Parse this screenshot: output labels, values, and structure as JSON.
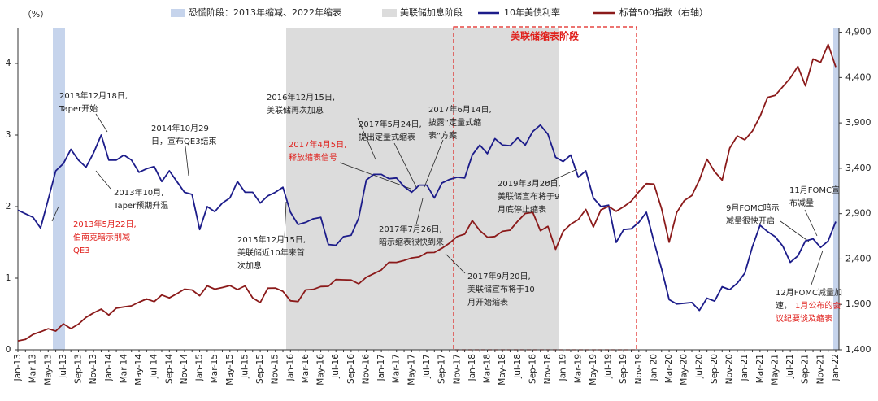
{
  "chart_data": {
    "type": "line",
    "y_label": "（%）",
    "box_label": "美联储缩表阶段",
    "regions": [
      {
        "name": "恐慌阶段：2013年缩减、2022年缩表",
        "color": "#c6d4ec"
      },
      {
        "name": "美联储加息阶段",
        "color": "#dcdcdc"
      }
    ],
    "categories": [
      "Jan-13",
      null,
      "Mar-13",
      null,
      "May-13",
      null,
      "Jul-13",
      null,
      "Sep-13",
      null,
      "Nov-13",
      null,
      "Jan-14",
      null,
      "Mar-14",
      null,
      "May-14",
      null,
      "Jul-14",
      null,
      "Sep-14",
      null,
      "Nov-14",
      null,
      "Jan-15",
      null,
      "Mar-15",
      null,
      "May-15",
      null,
      "Jul-15",
      null,
      "Sep-15",
      null,
      "Nov-15",
      null,
      "Jan-16",
      null,
      "Mar-16",
      null,
      "May-16",
      null,
      "Jul-16",
      null,
      "Sep-16",
      null,
      "Nov-16",
      null,
      "Jan-17",
      null,
      "Mar-17",
      null,
      "May-17",
      null,
      "Jul-17",
      null,
      "Sep-17",
      null,
      "Nov-17",
      null,
      "Jan-18",
      null,
      "Mar-18",
      null,
      "May-18",
      null,
      "Jul-18",
      null,
      "Sep-18",
      null,
      "Nov-18",
      null,
      "Jan-19",
      null,
      "Mar-19",
      null,
      "May-19",
      null,
      "Jul-19",
      null,
      "Sep-19",
      null,
      "Nov-19",
      null,
      "Jan-20",
      null,
      "Mar-20",
      null,
      "May-20",
      null,
      "Jul-20",
      null,
      "Sep-20",
      null,
      "Nov-20",
      null,
      "Jan-21",
      null,
      "Mar-21",
      null,
      "May-21",
      null,
      "Jul-21",
      null,
      "Sep-21",
      null,
      "Nov-21",
      null,
      "Jan-22"
    ],
    "series": [
      {
        "name": "10年美债利率",
        "color": "#1c1c8a",
        "values": [
          1.95,
          1.9,
          1.85,
          1.7,
          2.1,
          2.5,
          2.6,
          2.8,
          2.65,
          2.55,
          2.75,
          3.0,
          2.65,
          2.65,
          2.72,
          2.65,
          2.48,
          2.53,
          2.56,
          2.35,
          2.5,
          2.35,
          2.2,
          2.17,
          1.68,
          2.0,
          1.93,
          2.05,
          2.12,
          2.35,
          2.2,
          2.2,
          2.05,
          2.15,
          2.2,
          2.27,
          1.92,
          1.75,
          1.78,
          1.83,
          1.85,
          1.47,
          1.46,
          1.58,
          1.6,
          1.84,
          2.37,
          2.45,
          2.45,
          2.39,
          2.4,
          2.28,
          2.2,
          2.3,
          2.3,
          2.12,
          2.33,
          2.38,
          2.41,
          2.4,
          2.72,
          2.86,
          2.74,
          2.95,
          2.86,
          2.85,
          2.96,
          2.86,
          3.05,
          3.14,
          3.01,
          2.69,
          2.63,
          2.72,
          2.41,
          2.5,
          2.12,
          2.0,
          2.02,
          1.5,
          1.68,
          1.69,
          1.78,
          1.92,
          1.51,
          1.13,
          0.7,
          0.64,
          0.65,
          0.66,
          0.55,
          0.72,
          0.68,
          0.88,
          0.84,
          0.93,
          1.07,
          1.44,
          1.74,
          1.65,
          1.58,
          1.45,
          1.22,
          1.31,
          1.52,
          1.55,
          1.43,
          1.52,
          1.79
        ]
      },
      {
        "name": "标普500指数（右轴）",
        "color": "#8b1a1a",
        "axis": "y2",
        "values": [
          1498,
          1515,
          1569,
          1598,
          1631,
          1606,
          1686,
          1633,
          1682,
          1757,
          1806,
          1848,
          1783,
          1859,
          1872,
          1884,
          1924,
          1960,
          1931,
          2003,
          1972,
          2018,
          2068,
          2059,
          1995,
          2105,
          2068,
          2086,
          2107,
          2063,
          2104,
          1972,
          1920,
          2079,
          2080,
          2044,
          1940,
          1932,
          2060,
          2065,
          2097,
          2099,
          2174,
          2171,
          2168,
          2126,
          2199,
          2239,
          2279,
          2364,
          2363,
          2384,
          2412,
          2423,
          2470,
          2472,
          2519,
          2575,
          2648,
          2674,
          2824,
          2714,
          2641,
          2648,
          2705,
          2718,
          2816,
          2902,
          2914,
          2712,
          2760,
          2507,
          2704,
          2784,
          2834,
          2946,
          2752,
          2942,
          2980,
          2926,
          2977,
          3038,
          3141,
          3231,
          3226,
          2954,
          2585,
          2912,
          3044,
          3100,
          3271,
          3500,
          3363,
          3270,
          3622,
          3756,
          3714,
          3811,
          3973,
          4181,
          4204,
          4298,
          4395,
          4523,
          4308,
          4605,
          4567,
          4766,
          4516
        ]
      }
    ],
    "ylim": [
      0,
      4.5
    ],
    "yticks": [
      0,
      1,
      2,
      3,
      4
    ],
    "y2lim": [
      1400,
      4950
    ],
    "y2ticks": [
      {
        "value": 1400,
        "label": "1,400"
      },
      {
        "value": 1900,
        "label": "1,900"
      },
      {
        "value": 2400,
        "label": "2,400"
      },
      {
        "value": 2900,
        "label": "2,900"
      },
      {
        "value": 3400,
        "label": "3,400"
      },
      {
        "value": 3900,
        "label": "3,900"
      },
      {
        "value": 4400,
        "label": "4,400"
      },
      {
        "value": 4900,
        "label": "4,900"
      }
    ],
    "annotations": [
      {
        "lines": [
          "2013年12月18日,",
          "Taper开始"
        ],
        "color": "#222222"
      },
      {
        "lines": [
          "2014年10月29",
          "日，宣布QE3结束"
        ],
        "color": "#222222"
      },
      {
        "lines": [
          "2016年12月15日,",
          "美联储再次加息"
        ],
        "color": "#222222"
      },
      {
        "lines": [
          "2017年5月24日,",
          "提出定量式缩表"
        ],
        "color": "#222222"
      },
      {
        "lines": [
          "2017年6月14日,",
          "披露“定量式缩",
          "表”方案"
        ],
        "color": "#222222"
      },
      {
        "lines": [
          "2017年4月5日,",
          "释放缩表信号"
        ],
        "color": "#e0201c"
      },
      {
        "lines": [
          "2013年10月,",
          "Taper预期升温"
        ],
        "color": "#222222"
      },
      {
        "lines": [
          "2013年5月22日,",
          "伯南克暗示削减",
          "QE3"
        ],
        "color": "#e0201c"
      },
      {
        "lines": [
          "2015年12月15日,",
          "美联储近10年来首",
          "次加息"
        ],
        "color": "#222222"
      },
      {
        "lines": [
          "2017年7月26日,",
          "暗示缩表很快到来"
        ],
        "color": "#222222"
      },
      {
        "lines": [
          "2019年3月20日,",
          "美联储宣布将于9",
          "月底停止缩表"
        ],
        "color": "#222222"
      },
      {
        "lines": [
          "2017年9月20日,",
          "美联储宣布将于10",
          "月开始缩表"
        ],
        "color": "#222222"
      },
      {
        "lines": [
          "9月FOMC暗示",
          "减量很快开启"
        ],
        "color": "#222222"
      },
      {
        "lines": [
          "11月FOMC宣",
          "布减量"
        ],
        "color": "#222222"
      },
      {
        "lines": [
          "12月FOMC减量加",
          "速，"
        ],
        "color": "#222222"
      },
      {
        "lines": [
          "1月公布的会",
          "议纪要谈及缩表"
        ],
        "color": "#e0201c"
      }
    ]
  }
}
